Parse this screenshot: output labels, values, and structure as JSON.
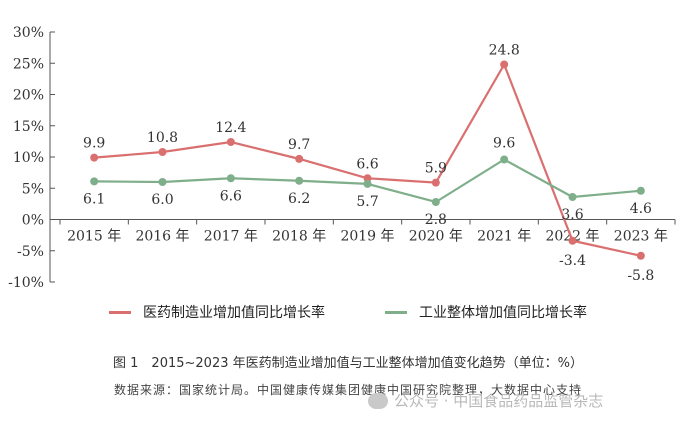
{
  "chart_data": {
    "type": "line",
    "categories": [
      "2015 年",
      "2016 年",
      "2017 年",
      "2018 年",
      "2019 年",
      "2020 年",
      "2021 年",
      "2022 年",
      "2023 年"
    ],
    "series": [
      {
        "name": "医药制造业增加值同比增长率",
        "values": [
          9.9,
          10.8,
          12.4,
          9.7,
          6.6,
          5.9,
          24.8,
          -3.4,
          -5.8
        ],
        "labels": [
          "9.9",
          "10.8",
          "12.4",
          "9.7",
          "6.6",
          "5.9",
          "24.8",
          "-3.4",
          "-5.8"
        ],
        "color": "#d9706f"
      },
      {
        "name": "工业整体增加值同比增长率",
        "values": [
          6.1,
          6.0,
          6.6,
          6.2,
          5.7,
          2.8,
          9.6,
          3.6,
          4.6
        ],
        "labels": [
          "6.1",
          "6.0",
          "6.6",
          "6.2",
          "5.7",
          "2.8",
          "9.6",
          "3.6",
          "4.6"
        ],
        "color": "#7fae8b"
      }
    ],
    "y_ticks": [
      "30%",
      "25%",
      "20%",
      "15%",
      "10%",
      "5%",
      "0%",
      "-5%",
      "-10%"
    ],
    "ylim": [
      -10,
      30
    ],
    "grid": false,
    "legend_position": "bottom"
  },
  "caption": "图 1　2015~2023 年医药制造业增加值与工业整体增加值变化趋势（单位：%）",
  "source": "数据来源：国家统计局。中国健康传媒集团健康中国研究院整理，大数据中心支持",
  "watermark": "公众号 · 中国食品药品监管杂志"
}
